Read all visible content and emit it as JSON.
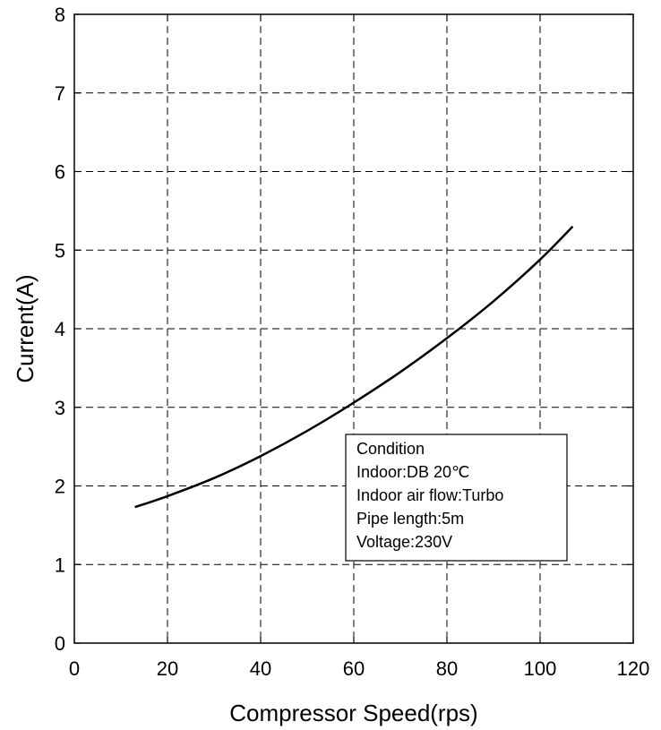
{
  "chart_data": {
    "type": "line",
    "title": "",
    "xlabel": "Compressor Speed(rps)",
    "ylabel": "Current(A)",
    "xlim": [
      0,
      120
    ],
    "ylim": [
      0,
      8
    ],
    "xticks": [
      0,
      20,
      40,
      60,
      80,
      100,
      120
    ],
    "yticks": [
      0,
      1,
      2,
      3,
      4,
      5,
      6,
      7,
      8
    ],
    "grid": true,
    "grid_style": "dashed",
    "series": [
      {
        "x": [
          13,
          20,
          30,
          40,
          50,
          60,
          70,
          80,
          90,
          100,
          107
        ],
        "y": [
          1.73,
          1.87,
          2.1,
          2.38,
          2.7,
          3.06,
          3.45,
          3.88,
          4.35,
          4.88,
          5.3
        ]
      }
    ],
    "annotation": {
      "lines": [
        "Condition",
        "Indoor:DB 20℃",
        "Indoor air flow:Turbo",
        "Pipe length:5m",
        "Voltage:230V"
      ],
      "placement": "lower-right"
    }
  },
  "colors": {
    "line": "#000000",
    "grid": "#000000",
    "background": "#ffffff"
  }
}
